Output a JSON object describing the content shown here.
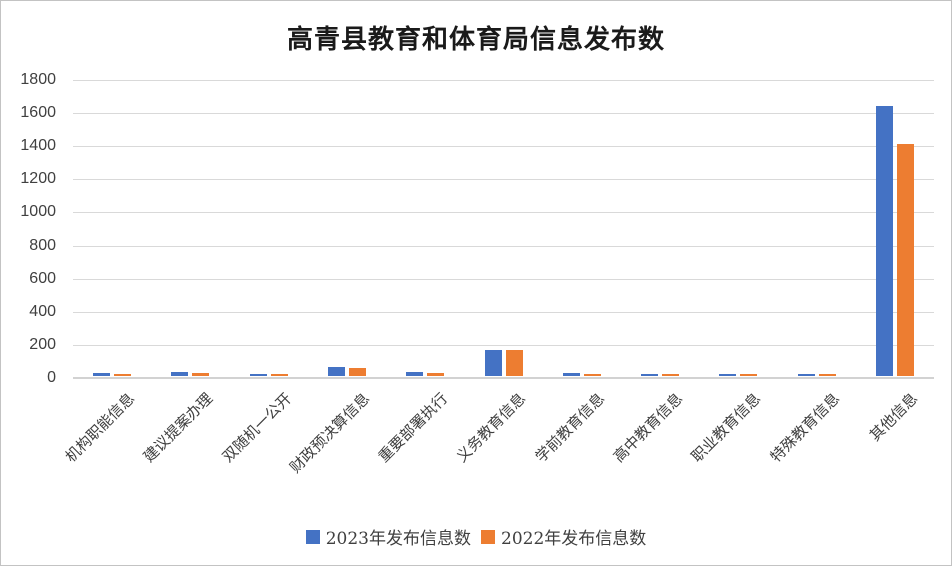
{
  "title": "高青县教育和体育局信息发布数",
  "chart_data": {
    "type": "bar",
    "title": "高青县教育和体育局信息发布数",
    "categories": [
      "机构职能信息",
      "建议提案办理",
      "双随机一公开",
      "财政预决算信息",
      "重要部署执行",
      "义务教育信息",
      "学前教育信息",
      "高中教育信息",
      "职业教育信息",
      "特殊教育信息",
      "其他信息"
    ],
    "series": [
      {
        "name": "2023年发布信息数",
        "color": "#4472C4",
        "values": [
          20,
          25,
          12,
          52,
          22,
          160,
          20,
          10,
          12,
          12,
          1630
        ]
      },
      {
        "name": "2022年发布信息数",
        "color": "#ED7D31",
        "values": [
          12,
          18,
          10,
          48,
          20,
          158,
          10,
          8,
          10,
          8,
          1400
        ]
      }
    ],
    "xlabel": "",
    "ylabel": "",
    "ylim": [
      0,
      1800
    ],
    "ytick_step": 200,
    "ytick_labels": [
      "0",
      "200",
      "400",
      "600",
      "800",
      "1000",
      "1200",
      "1400",
      "1600",
      "1800"
    ],
    "grid": "horizontal",
    "legend_position": "bottom"
  },
  "colors": {
    "series_2023": "#4472C4",
    "series_2022": "#ED7D31",
    "gridline": "#d9d9d9",
    "axis_line": "#d2d2d2",
    "tick_text": "#404040",
    "title_text": "#1a1a1a"
  }
}
